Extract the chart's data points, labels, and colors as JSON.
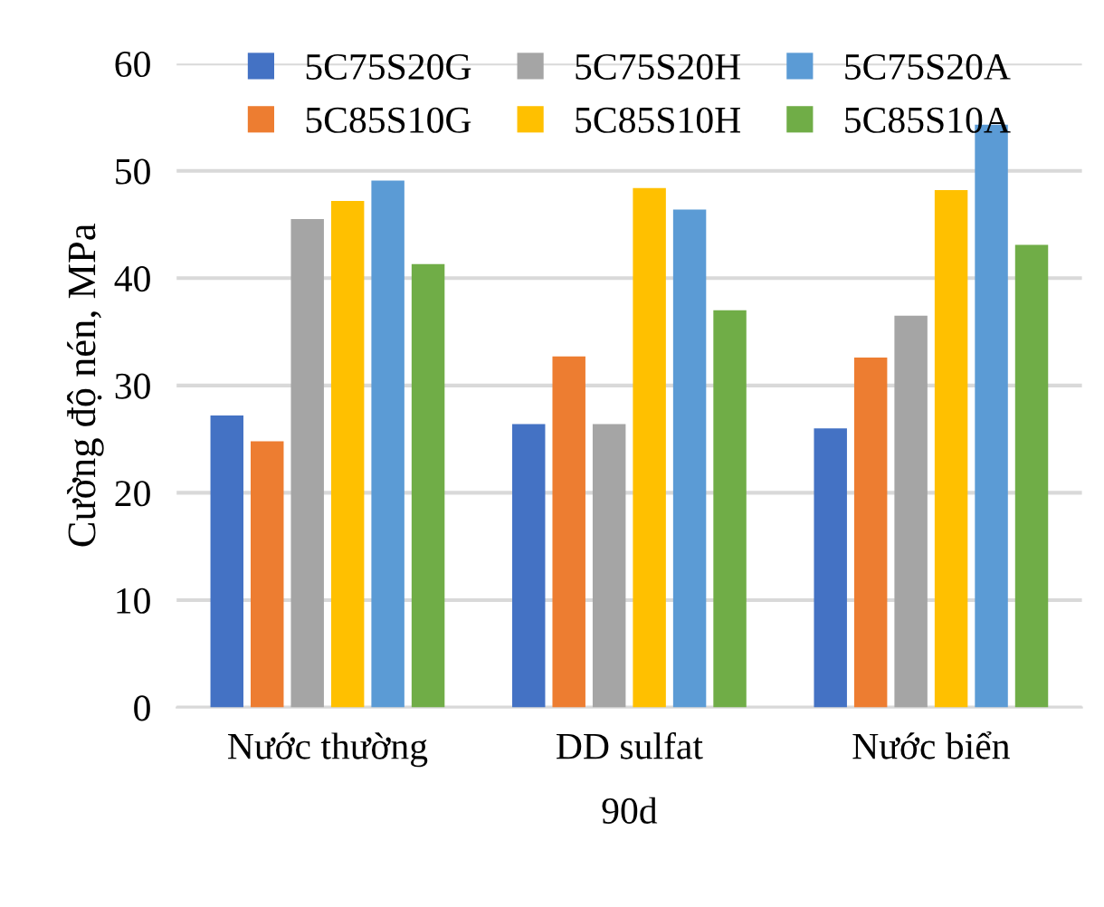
{
  "chart_data": {
    "type": "bar",
    "xlabel": "90d",
    "ylabel": "Cường độ nén, MPa",
    "categories": [
      "Nước thường",
      "DD sulfat",
      "Nước biển"
    ],
    "series": [
      {
        "name": "5C75S20G",
        "color": "#4472c4",
        "values": [
          27.2,
          26.4,
          26.0
        ]
      },
      {
        "name": "5C85S10G",
        "color": "#ed7d31",
        "values": [
          24.8,
          32.7,
          32.6
        ]
      },
      {
        "name": "5C75S20H",
        "color": "#a5a5a5",
        "values": [
          45.5,
          26.4,
          36.5
        ]
      },
      {
        "name": "5C85S10H",
        "color": "#ffc000",
        "values": [
          47.2,
          48.4,
          48.2
        ]
      },
      {
        "name": "5C75S20A",
        "color": "#5b9bd5",
        "values": [
          49.1,
          46.4,
          54.3
        ]
      },
      {
        "name": "5C85S10A",
        "color": "#70ad47",
        "values": [
          41.3,
          37.0,
          43.1
        ]
      }
    ],
    "ylim": [
      0,
      60
    ],
    "yticks": [
      0,
      10,
      20,
      30,
      40,
      50,
      60
    ],
    "grid": "y",
    "legend": "top"
  }
}
